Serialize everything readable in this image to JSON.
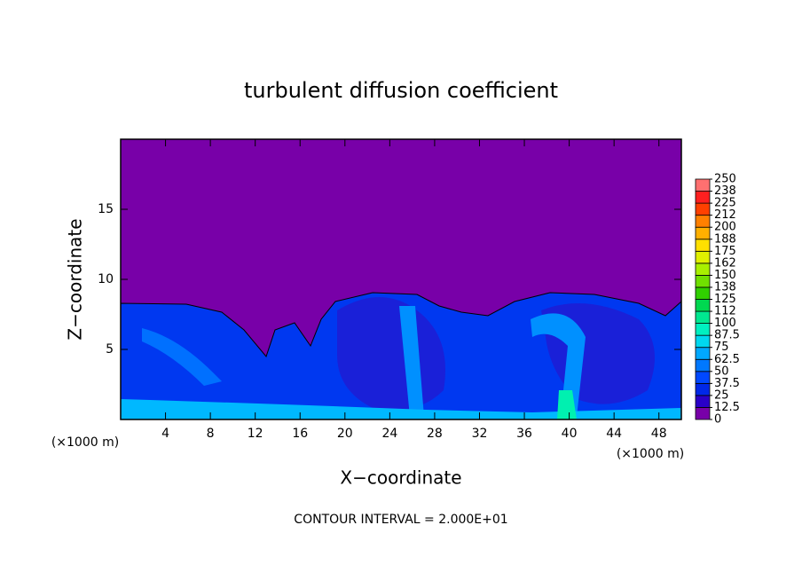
{
  "chart_data": {
    "type": "contour",
    "title": "turbulent diffusion coefficient",
    "xlabel": "X−coordinate",
    "ylabel": "Z−coordinate",
    "x_scale_label": "(×1000 m)",
    "y_scale_label": "(×1000 m)",
    "contour_interval_label": "CONTOUR INTERVAL = 2.000E+01",
    "xlim": [
      0,
      50
    ],
    "ylim": [
      0,
      20
    ],
    "xticks": [
      4,
      8,
      12,
      16,
      20,
      24,
      28,
      32,
      36,
      40,
      44,
      48
    ],
    "yticks": [
      5,
      10,
      15
    ],
    "colorbar": {
      "levels": [
        0,
        {
          "value": 12.5,
          "label": "12.5"
        },
        25,
        {
          "value": 37.5,
          "label": "37.5"
        },
        50,
        {
          "value": 62.5,
          "label": "62.5"
        },
        75,
        {
          "value": 87.5,
          "label": "87.5"
        },
        100,
        {
          "value": 112.5,
          "label": "112"
        },
        125,
        {
          "value": 137.5,
          "label": "138"
        },
        150,
        {
          "value": 162.5,
          "label": "162"
        },
        175,
        {
          "value": 187.5,
          "label": "188"
        },
        200,
        {
          "value": 212.5,
          "label": "212"
        },
        225,
        {
          "value": 237.5,
          "label": "238"
        },
        250
      ],
      "colors": [
        "#7800a8",
        "#2a00c8",
        "#0028e8",
        "#0048ff",
        "#0078ff",
        "#00a8ff",
        "#00d8f0",
        "#00f0c0",
        "#00e890",
        "#00d850",
        "#30d000",
        "#70e000",
        "#a8f000",
        "#e0f000",
        "#ffe000",
        "#ffb000",
        "#ff8000",
        "#ff4000",
        "#ff2020",
        "#ff7070"
      ]
    }
  }
}
